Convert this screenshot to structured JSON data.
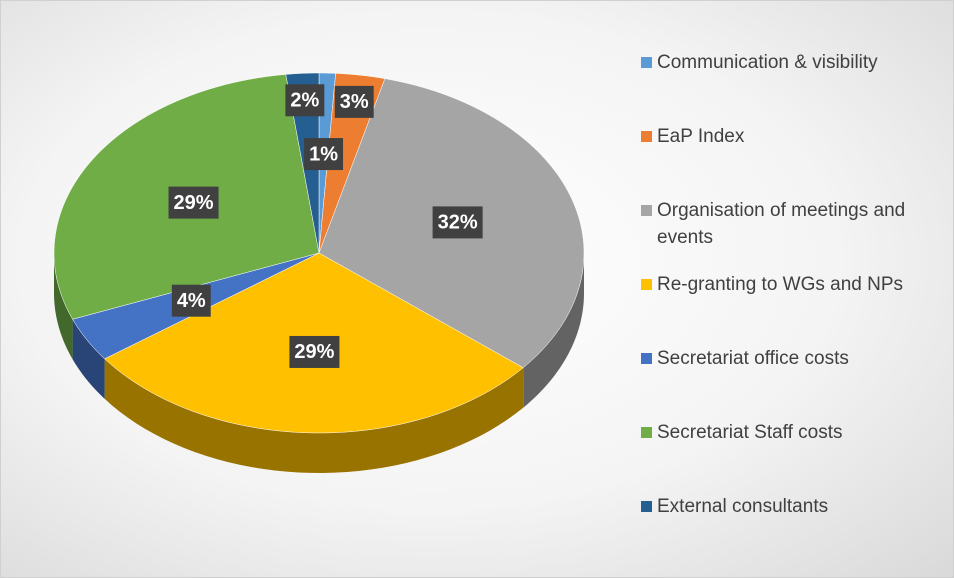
{
  "chart_data": {
    "type": "pie",
    "categories": [
      "Communication & visibility",
      "EaP Index",
      "Organisation of meetings and events",
      "Re-granting to WGs and NPs",
      "Secretariat office costs",
      "Secretariat Staff costs",
      "External consultants"
    ],
    "values": [
      1,
      3,
      32,
      29,
      4,
      29,
      2
    ],
    "value_labels": [
      "1%",
      "3%",
      "32%",
      "29%",
      "4%",
      "29%",
      "2%"
    ],
    "colors": [
      "#5b9bd5",
      "#ed7d31",
      "#a5a5a5",
      "#ffc000",
      "#4472c4",
      "#70ad47",
      "#255e91"
    ],
    "legend": "right"
  }
}
